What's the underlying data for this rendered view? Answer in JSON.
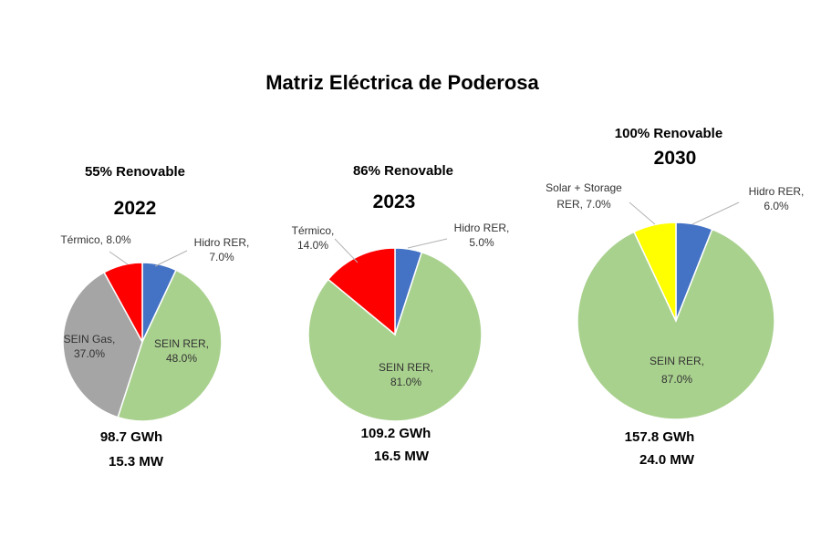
{
  "chart_data": [
    {
      "type": "pie",
      "title": "Matriz Eléctrica de Poderosa",
      "subtitle": "55% Renovable",
      "year": "2022",
      "energy": "98.7 GWh",
      "power": "15.3 MW",
      "slices": [
        {
          "name": "Hidro RER",
          "value": 7.0,
          "label": "7.0%",
          "color": "#4472C4"
        },
        {
          "name": "SEIN RER",
          "value": 48.0,
          "label": "48.0%",
          "color": "#A9D18E"
        },
        {
          "name": "SEIN Gas",
          "value": 37.0,
          "label": "37.0%",
          "color": "#A5A5A5"
        },
        {
          "name": "Térmico",
          "value": 8.0,
          "label": "8.0%",
          "color": "#FF0000"
        }
      ]
    },
    {
      "type": "pie",
      "subtitle": "86% Renovable",
      "year": "2023",
      "energy": "109.2 GWh",
      "power": "16.5 MW",
      "slices": [
        {
          "name": "Hidro RER",
          "value": 5.0,
          "label": "5.0%",
          "color": "#4472C4"
        },
        {
          "name": "SEIN RER",
          "value": 81.0,
          "label": "81.0%",
          "color": "#A9D18E"
        },
        {
          "name": "Térmico",
          "value": 14.0,
          "label": "14.0%",
          "color": "#FF0000"
        }
      ]
    },
    {
      "type": "pie",
      "subtitle": "100% Renovable",
      "year": "2030",
      "energy": "157.8 GWh",
      "power": "24.0 MW",
      "slices": [
        {
          "name": "Hidro RER",
          "value": 6.0,
          "label": "6.0%",
          "color": "#4472C4"
        },
        {
          "name": "SEIN RER",
          "value": 87.0,
          "label": "87.0%",
          "color": "#A9D18E"
        },
        {
          "name": "Solar + Storage RER",
          "value": 7.0,
          "label": "7.0%",
          "color": "#FFFF00"
        }
      ]
    }
  ],
  "labels": {
    "p0": [
      "Hidro RER,",
      "7.0%",
      "SEIN RER,",
      "48.0%",
      "SEIN Gas,",
      "37.0%",
      "Térmico, 8.0%"
    ],
    "p1": [
      "Hidro RER,",
      "5.0%",
      "SEIN RER,",
      "81.0%",
      "Térmico,",
      "14.0%"
    ],
    "p2": [
      "Hidro RER,",
      "6.0%",
      "SEIN RER,",
      "87.0%",
      "Solar + Storage",
      "RER, 7.0%"
    ]
  }
}
